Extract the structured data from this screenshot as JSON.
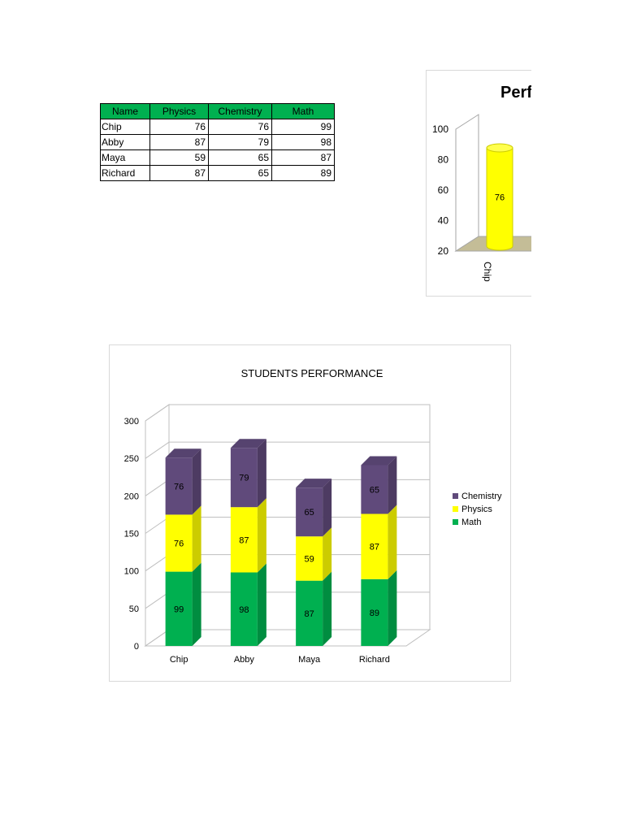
{
  "table": {
    "headers": [
      "Name",
      "Physics",
      "Chemistry",
      "Math"
    ],
    "rows": [
      {
        "name": "Chip",
        "physics": 76,
        "chemistry": 76,
        "math": 99
      },
      {
        "name": "Abby",
        "physics": 87,
        "chemistry": 79,
        "math": 98
      },
      {
        "name": "Maya",
        "physics": 59,
        "chemistry": 65,
        "math": 87
      },
      {
        "name": "Richard",
        "physics": 87,
        "chemistry": 65,
        "math": 89
      }
    ]
  },
  "chart_data": [
    {
      "type": "bar",
      "title": "Perf",
      "yticks": [
        20,
        40,
        60,
        80,
        100
      ],
      "ylim": [
        20,
        100
      ],
      "categories": [
        "Chip"
      ],
      "series": [
        {
          "values": [
            76
          ],
          "color": "#ffff00"
        }
      ],
      "data_labels": [
        76
      ],
      "cropped": true,
      "grid": false,
      "bar_shape": "cylinder"
    },
    {
      "type": "bar",
      "stacked": true,
      "title": "STUDENTS PERFORMANCE",
      "categories": [
        "Chip",
        "Abby",
        "Maya",
        "Richard"
      ],
      "ylim": [
        0,
        300
      ],
      "yticks": [
        0,
        50,
        100,
        150,
        200,
        250,
        300
      ],
      "series": [
        {
          "name": "Math",
          "values": [
            99,
            98,
            87,
            89
          ],
          "color": "#00b050"
        },
        {
          "name": "Physics",
          "values": [
            76,
            87,
            59,
            87
          ],
          "color": "#ffff00"
        },
        {
          "name": "Chemistry",
          "values": [
            76,
            79,
            65,
            65
          ],
          "color": "#604a7b"
        }
      ],
      "legend": {
        "position": "right",
        "items": [
          "Chemistry",
          "Physics",
          "Math"
        ]
      },
      "grid": true,
      "style": "3d-column"
    }
  ]
}
